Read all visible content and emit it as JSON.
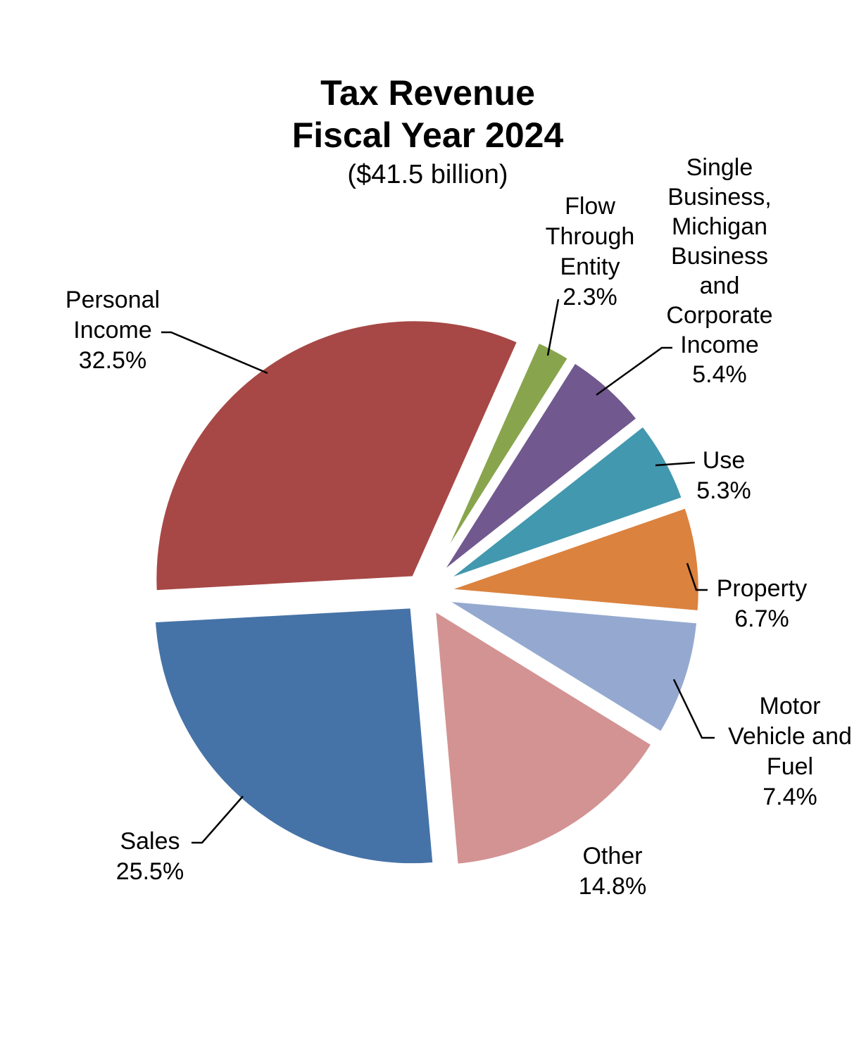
{
  "chart_data": {
    "type": "pie",
    "title": "Tax Revenue",
    "title_line2": "Fiscal Year 2024",
    "subtitle": "($41.5 billion)",
    "slices": [
      {
        "label_lines": [
          "Flow",
          "Through",
          "Entity"
        ],
        "value_text": "2.3%",
        "value": 2.3,
        "color": "#88a54d"
      },
      {
        "label_lines": [
          "Single",
          "Business,",
          "Michigan",
          "Business",
          "and",
          "Corporate",
          "Income"
        ],
        "value_text": "5.4%",
        "value": 5.4,
        "color": "#71598f"
      },
      {
        "label_lines": [
          "Use"
        ],
        "value_text": "5.3%",
        "value": 5.3,
        "color": "#4298ae"
      },
      {
        "label_lines": [
          "Property"
        ],
        "value_text": "6.7%",
        "value": 6.7,
        "color": "#db823e"
      },
      {
        "label_lines": [
          "Motor",
          "Vehicle and",
          "Fuel"
        ],
        "value_text": "7.4%",
        "value": 7.4,
        "color": "#95a9d0"
      },
      {
        "label_lines": [
          "Other"
        ],
        "value_text": "14.8%",
        "value": 14.8,
        "color": "#d39393"
      },
      {
        "label_lines": [
          "Sales"
        ],
        "value_text": "25.5%",
        "value": 25.5,
        "color": "#4673a7"
      },
      {
        "label_lines": [
          "Personal",
          "Income"
        ],
        "value_text": "32.5%",
        "value": 32.5,
        "color": "#a74846"
      }
    ]
  }
}
